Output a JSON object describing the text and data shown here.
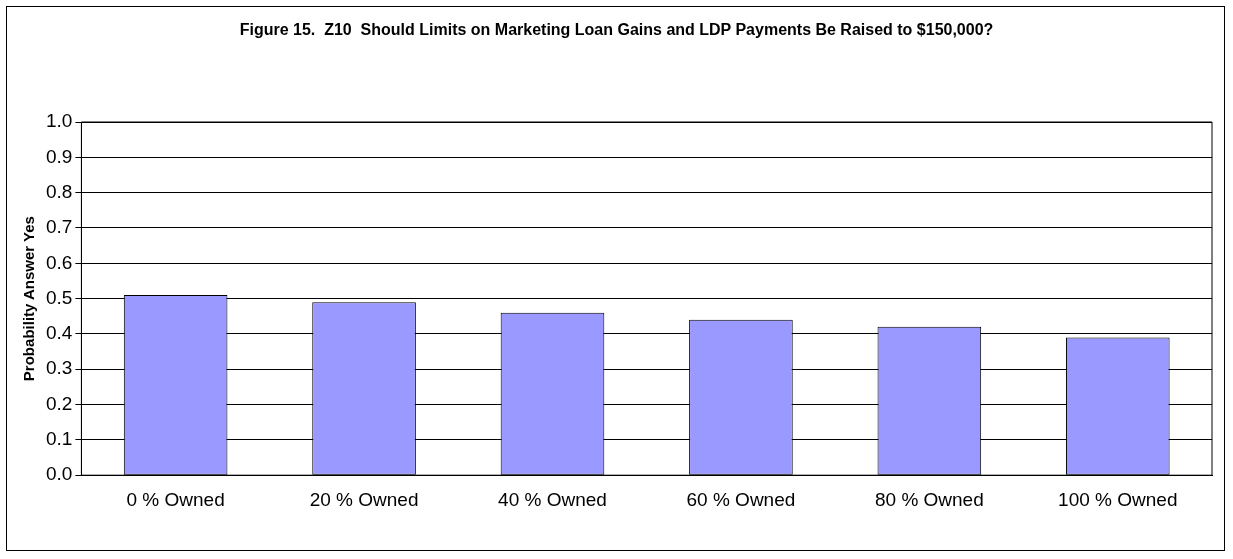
{
  "chart_data": {
    "type": "bar",
    "title": "Figure 15.  Z10  Should Limits on Marketing Loan Gains and LDP Payments Be Raised to $150,000?",
    "ylabel": "Probability Answer Yes",
    "categories": [
      "0 % Owned",
      "20 % Owned",
      "40 % Owned",
      "60 % Owned",
      "80 % Owned",
      "100 % Owned"
    ],
    "values": [
      0.51,
      0.49,
      0.46,
      0.44,
      0.42,
      0.39
    ],
    "color": "#9999ff",
    "ylim": [
      0,
      1
    ],
    "yticks": [
      {
        "value": 0,
        "label": "0.0"
      },
      {
        "value": 0.1,
        "label": "0.1"
      },
      {
        "value": 0.2,
        "label": "0.2"
      },
      {
        "value": 0.3,
        "label": "0.3"
      },
      {
        "value": 0.4,
        "label": "0.4"
      },
      {
        "value": 0.5,
        "label": "0.5"
      },
      {
        "value": 0.6,
        "label": "0.6"
      },
      {
        "value": 0.7,
        "label": "0.7"
      },
      {
        "value": 0.8,
        "label": "0.8"
      },
      {
        "value": 0.9,
        "label": "0.9"
      },
      {
        "value": 1,
        "label": "1.0"
      }
    ],
    "grid": "y",
    "legend": false
  }
}
